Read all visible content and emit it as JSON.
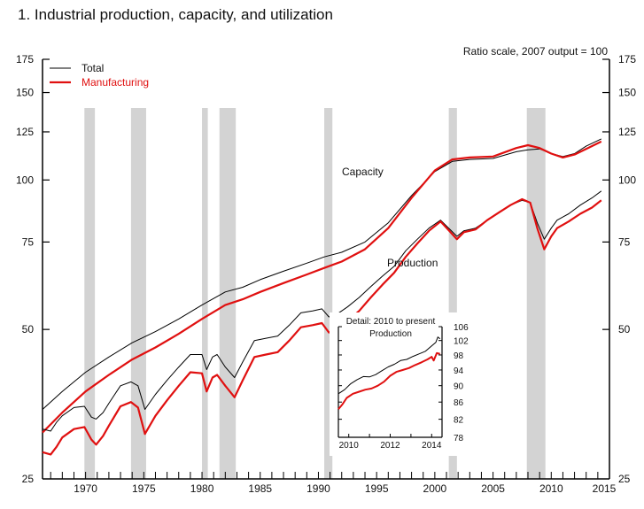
{
  "chart_data": {
    "type": "line",
    "title": "1.  Industrial production, capacity, and utilization",
    "scale_note": "Ratio scale, 2007 output = 100",
    "y_scale": "log",
    "ylim": [
      25,
      175
    ],
    "y_ticks": [
      25,
      50,
      75,
      100,
      125,
      150,
      175
    ],
    "y_tick_labels": [
      "25",
      "50",
      "75",
      "100",
      "125",
      "150",
      "175"
    ],
    "xlim": [
      1966.3,
      2015
    ],
    "x_ticks": [
      1970,
      1975,
      1980,
      1985,
      1990,
      1995,
      2000,
      2005,
      2010,
      2015
    ],
    "x_tick_labels": [
      "1970",
      "1975",
      "1980",
      "1985",
      "1990",
      "1995",
      "2000",
      "2005",
      "2010",
      "2015"
    ],
    "grid": false,
    "legend": {
      "placement": "top-left",
      "entries": [
        {
          "name": "Total",
          "color": "#000000"
        },
        {
          "name": "Manufacturing",
          "color": "#e01010"
        }
      ]
    },
    "annotations": {
      "capacity": "Capacity",
      "production": "Production"
    },
    "recessions": [
      [
        1969.9,
        1970.8
      ],
      [
        1973.9,
        1975.2
      ],
      [
        1980.0,
        1980.5
      ],
      [
        1981.5,
        1982.9
      ],
      [
        1990.5,
        1991.2
      ],
      [
        2001.2,
        2001.9
      ],
      [
        2007.9,
        2009.5
      ]
    ],
    "series": [
      {
        "name": "Capacity - Total",
        "color": "#000000",
        "points": [
          [
            1966.3,
            34.5
          ],
          [
            1968,
            37.5
          ],
          [
            1970,
            41
          ],
          [
            1972,
            44
          ],
          [
            1974,
            47
          ],
          [
            1976,
            49.5
          ],
          [
            1978,
            52.5
          ],
          [
            1980,
            56
          ],
          [
            1982,
            59.5
          ],
          [
            1983.5,
            60.8
          ],
          [
            1985,
            63
          ],
          [
            1987,
            65.5
          ],
          [
            1989,
            68
          ],
          [
            1990.5,
            70
          ],
          [
            1992,
            71.5
          ],
          [
            1994,
            75
          ],
          [
            1996,
            82
          ],
          [
            1998,
            93
          ],
          [
            2000,
            104
          ],
          [
            2001.5,
            109
          ],
          [
            2003,
            110
          ],
          [
            2005,
            110.5
          ],
          [
            2007,
            114
          ],
          [
            2008,
            115
          ],
          [
            2009,
            115.5
          ],
          [
            2010,
            113
          ],
          [
            2011,
            111.5
          ],
          [
            2012,
            113
          ],
          [
            2013,
            117
          ],
          [
            2014.3,
            121
          ]
        ]
      },
      {
        "name": "Capacity - Manufacturing",
        "color": "#e01010",
        "points": [
          [
            1966.3,
            31
          ],
          [
            1968,
            34
          ],
          [
            1970,
            37.5
          ],
          [
            1972,
            40.5
          ],
          [
            1974,
            43.5
          ],
          [
            1976,
            46
          ],
          [
            1978,
            49
          ],
          [
            1980,
            52.5
          ],
          [
            1982,
            56
          ],
          [
            1983.5,
            57.5
          ],
          [
            1985,
            59.5
          ],
          [
            1987,
            62
          ],
          [
            1989,
            64.5
          ],
          [
            1990.5,
            66.5
          ],
          [
            1992,
            68.5
          ],
          [
            1994,
            72.5
          ],
          [
            1996,
            80
          ],
          [
            1998,
            92
          ],
          [
            2000,
            104.5
          ],
          [
            2001.5,
            110
          ],
          [
            2003,
            111
          ],
          [
            2005,
            111.5
          ],
          [
            2007,
            116
          ],
          [
            2008,
            117.5
          ],
          [
            2009,
            116
          ],
          [
            2010,
            113
          ],
          [
            2011,
            111
          ],
          [
            2012,
            112.5
          ],
          [
            2013,
            115.5
          ],
          [
            2014.3,
            119.5
          ]
        ]
      },
      {
        "name": "Production - Total",
        "color": "#000000",
        "points": [
          [
            1966.3,
            31.5
          ],
          [
            1967,
            31.2
          ],
          [
            1967.5,
            32.5
          ],
          [
            1968,
            33.5
          ],
          [
            1969,
            34.8
          ],
          [
            1969.9,
            35
          ],
          [
            1970.5,
            33.3
          ],
          [
            1970.9,
            33
          ],
          [
            1971.5,
            34
          ],
          [
            1972,
            35.5
          ],
          [
            1973,
            38.5
          ],
          [
            1973.9,
            39.2
          ],
          [
            1974.5,
            38.5
          ],
          [
            1975.1,
            34.5
          ],
          [
            1976,
            37
          ],
          [
            1977,
            39.5
          ],
          [
            1978,
            42
          ],
          [
            1979,
            44.5
          ],
          [
            1980,
            44.5
          ],
          [
            1980.4,
            41.5
          ],
          [
            1980.9,
            44
          ],
          [
            1981.3,
            44.5
          ],
          [
            1982,
            42
          ],
          [
            1982.8,
            40
          ],
          [
            1983.5,
            43
          ],
          [
            1984.5,
            47.5
          ],
          [
            1985.5,
            48
          ],
          [
            1986.5,
            48.5
          ],
          [
            1987.5,
            51
          ],
          [
            1988.5,
            54
          ],
          [
            1989.5,
            54.5
          ],
          [
            1990.3,
            55
          ],
          [
            1990.9,
            53
          ],
          [
            1991.5,
            53.5
          ],
          [
            1992.5,
            55.5
          ],
          [
            1993.5,
            58
          ],
          [
            1994.5,
            61
          ],
          [
            1995.5,
            64
          ],
          [
            1996.5,
            67
          ],
          [
            1997.5,
            72
          ],
          [
            1998.5,
            76
          ],
          [
            1999.5,
            80
          ],
          [
            2000.5,
            83
          ],
          [
            2001.9,
            77
          ],
          [
            2002.5,
            79
          ],
          [
            2003.5,
            80
          ],
          [
            2004.5,
            83
          ],
          [
            2005.5,
            86
          ],
          [
            2006.5,
            89
          ],
          [
            2007.5,
            91
          ],
          [
            2008.2,
            90
          ],
          [
            2008.8,
            82
          ],
          [
            2009.4,
            76
          ],
          [
            2010,
            80
          ],
          [
            2010.5,
            83
          ],
          [
            2011.5,
            85.5
          ],
          [
            2012.5,
            89
          ],
          [
            2013.5,
            92
          ],
          [
            2014.3,
            95
          ]
        ]
      },
      {
        "name": "Production - Manufacturing",
        "color": "#e01010",
        "points": [
          [
            1966.3,
            28.3
          ],
          [
            1967,
            28
          ],
          [
            1967.5,
            29
          ],
          [
            1968,
            30.3
          ],
          [
            1969,
            31.5
          ],
          [
            1969.9,
            31.8
          ],
          [
            1970.5,
            30
          ],
          [
            1970.9,
            29.3
          ],
          [
            1971.5,
            30.5
          ],
          [
            1972,
            32
          ],
          [
            1973,
            35
          ],
          [
            1973.9,
            35.7
          ],
          [
            1974.5,
            34.8
          ],
          [
            1975.1,
            30.8
          ],
          [
            1976,
            33.5
          ],
          [
            1977,
            36
          ],
          [
            1978,
            38.5
          ],
          [
            1979,
            41
          ],
          [
            1980,
            40.8
          ],
          [
            1980.4,
            37.5
          ],
          [
            1980.9,
            40
          ],
          [
            1981.3,
            40.5
          ],
          [
            1982,
            38.5
          ],
          [
            1982.8,
            36.5
          ],
          [
            1983.5,
            39.5
          ],
          [
            1984.5,
            44
          ],
          [
            1985.5,
            44.5
          ],
          [
            1986.5,
            45
          ],
          [
            1987.5,
            47.5
          ],
          [
            1988.5,
            50.5
          ],
          [
            1989.5,
            51
          ],
          [
            1990.3,
            51.5
          ],
          [
            1990.9,
            49.3
          ],
          [
            1991.5,
            50
          ],
          [
            1992.5,
            52
          ],
          [
            1993.5,
            54.5
          ],
          [
            1994.5,
            58
          ],
          [
            1995.5,
            61.5
          ],
          [
            1996.5,
            65
          ],
          [
            1997.5,
            70
          ],
          [
            1998.5,
            74.5
          ],
          [
            1999.5,
            79
          ],
          [
            2000.5,
            82.5
          ],
          [
            2001.9,
            76
          ],
          [
            2002.5,
            78.5
          ],
          [
            2003.5,
            79.5
          ],
          [
            2004.5,
            83
          ],
          [
            2005.5,
            86
          ],
          [
            2006.5,
            89
          ],
          [
            2007.5,
            91.5
          ],
          [
            2008.2,
            90
          ],
          [
            2008.8,
            80
          ],
          [
            2009.4,
            72.5
          ],
          [
            2010,
            77
          ],
          [
            2010.5,
            80
          ],
          [
            2011.5,
            82.5
          ],
          [
            2012.5,
            85.5
          ],
          [
            2013.5,
            88
          ],
          [
            2014.3,
            91
          ]
        ]
      }
    ],
    "inset": {
      "title": "Detail: 2010 to present",
      "subtitle": "Production",
      "xlim": [
        2009.5,
        2014.5
      ],
      "x_ticks": [
        2010,
        2012,
        2014
      ],
      "x_tick_labels": [
        "2010",
        "2012",
        "2014"
      ],
      "ylim": [
        78,
        106
      ],
      "y_ticks": [
        78,
        82,
        86,
        90,
        94,
        98,
        102,
        106
      ],
      "y_tick_labels": [
        "78",
        "82",
        "86",
        "90",
        "94",
        "98",
        "102",
        "106"
      ],
      "series": [
        {
          "name": "Total",
          "color": "#000000",
          "points": [
            [
              2009.5,
              88
            ],
            [
              2009.8,
              89
            ],
            [
              2010.1,
              90.5
            ],
            [
              2010.4,
              91.5
            ],
            [
              2010.7,
              92.3
            ],
            [
              2011,
              92.2
            ],
            [
              2011.3,
              92.8
            ],
            [
              2011.6,
              93.8
            ],
            [
              2011.9,
              94.8
            ],
            [
              2012.2,
              95.5
            ],
            [
              2012.5,
              96.5
            ],
            [
              2012.8,
              96.8
            ],
            [
              2013.1,
              97.6
            ],
            [
              2013.4,
              98.3
            ],
            [
              2013.7,
              99
            ],
            [
              2014,
              100.5
            ],
            [
              2014.2,
              101.5
            ],
            [
              2014.3,
              103
            ],
            [
              2014.4,
              102.5
            ]
          ]
        },
        {
          "name": "Manufacturing",
          "color": "#e01010",
          "points": [
            [
              2009.5,
              84.3
            ],
            [
              2009.7,
              85.5
            ],
            [
              2009.9,
              87
            ],
            [
              2010.2,
              88
            ],
            [
              2010.5,
              88.5
            ],
            [
              2010.8,
              89
            ],
            [
              2011.1,
              89.3
            ],
            [
              2011.4,
              90
            ],
            [
              2011.7,
              91
            ],
            [
              2012,
              92.5
            ],
            [
              2012.3,
              93.5
            ],
            [
              2012.6,
              94
            ],
            [
              2012.9,
              94.5
            ],
            [
              2013.2,
              95.3
            ],
            [
              2013.5,
              96
            ],
            [
              2013.8,
              96.8
            ],
            [
              2014,
              97.5
            ],
            [
              2014.1,
              96.5
            ],
            [
              2014.25,
              98.5
            ],
            [
              2014.4,
              98.3
            ]
          ]
        }
      ]
    }
  }
}
